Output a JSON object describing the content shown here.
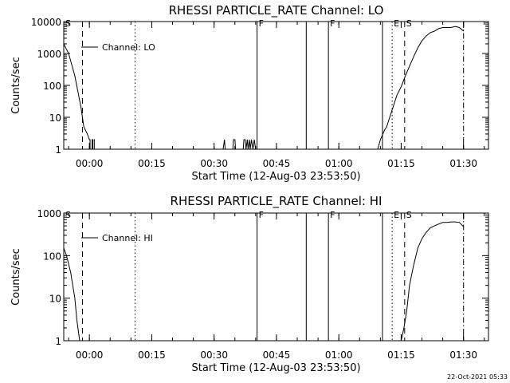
{
  "footer": {
    "timestamp": "22-Oct-2021 05:33"
  },
  "chart_data": [
    {
      "type": "line",
      "title": "RHESSI PARTICLE_RATE Channel: LO",
      "xlabel": "Start Time (12-Aug-03 23:53:50)",
      "ylabel": "Counts/sec",
      "y_scale": "log",
      "ylim": [
        1,
        10000
      ],
      "y_ticks": [
        1,
        10,
        100,
        1000,
        10000
      ],
      "y_tick_labels": [
        "1",
        "10",
        "100",
        "1000",
        "10000"
      ],
      "xlim": [
        "23:53:50",
        "01:36:00"
      ],
      "x_ticks": [
        "00:00",
        "00:15",
        "00:30",
        "00:45",
        "01:00",
        "01:15",
        "01:30"
      ],
      "legend": {
        "label": "Channel: LO",
        "position": "top-left"
      },
      "series": [
        {
          "name": "Channel: LO",
          "x": [
            "23:53:50",
            "23:55:00",
            "23:56:30",
            "23:58:00",
            "23:58:40",
            "23:59:30",
            "00:00:00",
            "00:00:10",
            "00:00:10",
            "00:00:40",
            "00:00:40",
            "00:00:50",
            "00:00:50",
            "00:01:10",
            "00:01:10",
            "00:01:20"
          ],
          "y": [
            2000,
            1000,
            200,
            20,
            5,
            3,
            2,
            2,
            1,
            1,
            2,
            2,
            1,
            1,
            2,
            2
          ],
          "segment_gap_after_index": 15
        },
        {
          "name": "Channel: LO",
          "x": [
            "00:32:10",
            "00:32:30",
            "00:32:40",
            "00:34:30",
            "00:34:40",
            "00:35:00",
            "00:35:10",
            "00:37:00",
            "00:37:10",
            "00:37:30",
            "00:37:40",
            "00:38:00",
            "00:38:10",
            "00:38:30",
            "00:38:40",
            "00:39:00",
            "00:39:20",
            "00:39:40",
            "00:40:00"
          ],
          "y": [
            1,
            2,
            1,
            1,
            2,
            2,
            1,
            1,
            2,
            2,
            1,
            2,
            1,
            2,
            1,
            2,
            1,
            2,
            1
          ]
        },
        {
          "name": "Channel: LO",
          "x": [
            "01:09:20",
            "01:10:00",
            "01:11:00",
            "01:11:30",
            "01:12:00",
            "01:13:00",
            "01:14:00",
            "01:15:00",
            "01:16:00",
            "01:17:00",
            "01:18:00",
            "01:19:00",
            "01:20:00",
            "01:21:00",
            "01:22:00",
            "01:23:00",
            "01:24:00",
            "01:25:00",
            "01:26:00",
            "01:27:00",
            "01:28:00",
            "01:29:00",
            "01:30:00"
          ],
          "y": [
            1,
            2,
            4,
            5,
            8,
            20,
            50,
            90,
            200,
            400,
            800,
            1500,
            2500,
            3500,
            4500,
            5000,
            6000,
            6500,
            6500,
            6500,
            7000,
            6500,
            5000
          ]
        }
      ],
      "markers": [
        {
          "time": "23:53:50",
          "style": "dash-dot",
          "label": "S"
        },
        {
          "time": "23:58:20",
          "style": "dashed",
          "label": ""
        },
        {
          "time": "00:11:00",
          "style": "dotted",
          "label": ""
        },
        {
          "time": "00:40:20",
          "style": "solid",
          "label": "F"
        },
        {
          "time": "00:52:10",
          "style": "solid",
          "label": ""
        },
        {
          "time": "00:57:30",
          "style": "solid",
          "label": "F"
        },
        {
          "time": "01:10:30",
          "style": "solid",
          "label": ""
        },
        {
          "time": "01:12:50",
          "style": "dotted",
          "label": "E"
        },
        {
          "time": "01:15:50",
          "style": "dashed",
          "label": "S"
        },
        {
          "time": "01:30:00",
          "style": "dash-dot",
          "label": ""
        }
      ]
    },
    {
      "type": "line",
      "title": "RHESSI PARTICLE_RATE Channel: HI",
      "xlabel": "Start Time (12-Aug-03 23:53:50)",
      "ylabel": "Counts/sec",
      "y_scale": "log",
      "ylim": [
        1,
        1000
      ],
      "y_ticks": [
        1,
        10,
        100,
        1000
      ],
      "y_tick_labels": [
        "1",
        "10",
        "100",
        "1000"
      ],
      "xlim": [
        "23:53:50",
        "01:36:00"
      ],
      "x_ticks": [
        "00:00",
        "00:15",
        "00:30",
        "00:45",
        "01:00",
        "01:15",
        "01:30"
      ],
      "legend": {
        "label": "Channel: HI",
        "position": "top-left"
      },
      "series": [
        {
          "name": "Channel: HI",
          "x": [
            "23:53:50",
            "23:54:30",
            "23:55:30",
            "23:56:30",
            "23:57:00",
            "23:57:40"
          ],
          "y": [
            150,
            100,
            40,
            10,
            3,
            1
          ]
        },
        {
          "name": "Channel: HI",
          "x": [
            "01:15:00",
            "01:15:40",
            "01:16:20",
            "01:17:00",
            "01:18:00",
            "01:19:00",
            "01:20:00",
            "01:21:00",
            "01:22:00",
            "01:23:00",
            "01:24:00",
            "01:25:00",
            "01:26:00",
            "01:27:00",
            "01:28:00",
            "01:29:00",
            "01:30:00"
          ],
          "y": [
            1,
            2,
            5,
            20,
            60,
            150,
            250,
            350,
            450,
            500,
            550,
            600,
            600,
            620,
            620,
            600,
            480
          ]
        }
      ],
      "markers": [
        {
          "time": "23:53:50",
          "style": "dash-dot",
          "label": "S"
        },
        {
          "time": "23:58:20",
          "style": "dashed",
          "label": ""
        },
        {
          "time": "00:11:00",
          "style": "dotted",
          "label": ""
        },
        {
          "time": "00:40:20",
          "style": "solid",
          "label": "F"
        },
        {
          "time": "00:52:10",
          "style": "solid",
          "label": ""
        },
        {
          "time": "00:57:30",
          "style": "solid",
          "label": "F"
        },
        {
          "time": "01:10:30",
          "style": "solid",
          "label": ""
        },
        {
          "time": "01:12:50",
          "style": "dotted",
          "label": "E"
        },
        {
          "time": "01:15:50",
          "style": "dashed",
          "label": "S"
        },
        {
          "time": "01:30:00",
          "style": "dash-dot",
          "label": ""
        }
      ]
    }
  ]
}
